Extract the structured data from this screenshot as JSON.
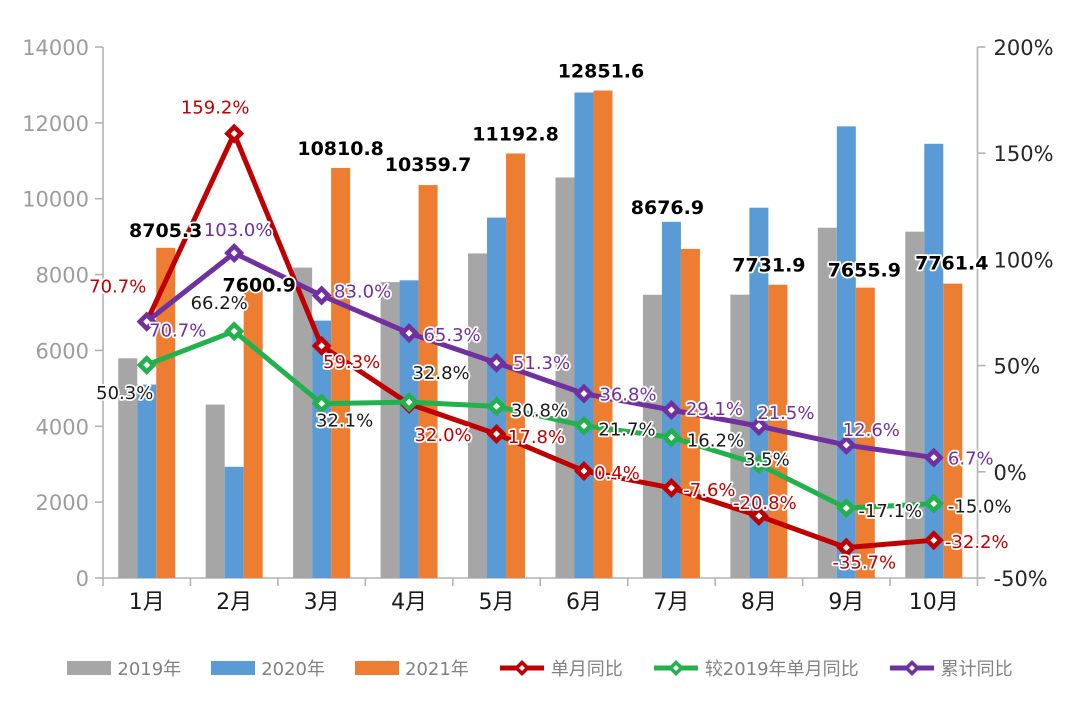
{
  "chart_data": {
    "type": "combo-bar-line",
    "title": "",
    "categories": [
      "1月",
      "2月",
      "3月",
      "4月",
      "5月",
      "6月",
      "7月",
      "8月",
      "9月",
      "10月"
    ],
    "bar_series": [
      {
        "name": "2019年",
        "color": "#a6a6a6",
        "values": [
          5792,
          4573,
          8184,
          7801,
          8557,
          10560,
          7467,
          7470,
          9235,
          9131
        ]
      },
      {
        "name": "2020年",
        "color": "#5b9bd5",
        "values": [
          5100,
          2932,
          6786,
          7848,
          9502,
          12800,
          9391,
          9763,
          11907,
          11448
        ]
      },
      {
        "name": "2021年",
        "color": "#ed7d31",
        "values": [
          8705.3,
          7600.9,
          10810.8,
          10359.7,
          11192.8,
          12851.6,
          8676.9,
          7731.9,
          7655.9,
          7761.4
        ],
        "value_labels": [
          "8705.3",
          "7600.9",
          "10810.8",
          "10359.7",
          "11192.8",
          "12851.6",
          "8676.9",
          "7731.9",
          "7655.9",
          "7761.4"
        ]
      }
    ],
    "line_series": [
      {
        "name": "单月同比",
        "color": "#c00000",
        "label_color": "#c00000",
        "values": [
          70.7,
          159.2,
          59.3,
          32.0,
          17.8,
          0.4,
          -7.6,
          -20.8,
          -35.7,
          -32.2
        ],
        "labels": [
          "70.7%",
          "159.2%",
          "59.3%",
          "32.0%",
          "17.8%",
          "0.4%",
          "-7.6%",
          "-20.8%",
          "-35.7%",
          "-32.2%"
        ]
      },
      {
        "name": "较2019年单月同比",
        "color": "#22b14c",
        "label_color": "#1a1a1a",
        "values": [
          50.3,
          66.2,
          32.1,
          32.8,
          30.8,
          21.7,
          16.2,
          3.5,
          -17.1,
          -15.0
        ],
        "labels": [
          "50.3%",
          "66.2%",
          "32.1%",
          "32.8%",
          "30.8%",
          "21.7%",
          "16.2%",
          "3.5%",
          "-17.1%",
          "-15.0%"
        ]
      },
      {
        "name": "累计同比",
        "color": "#7030a0",
        "label_color": "#7030a0",
        "values": [
          70.7,
          103.0,
          83.0,
          65.3,
          51.3,
          36.8,
          29.1,
          21.5,
          12.6,
          6.7
        ],
        "labels": [
          "70.7%",
          "103.0%",
          "83.0%",
          "65.3%",
          "51.3%",
          "36.8%",
          "29.1%",
          "21.5%",
          "12.6%",
          "6.7%"
        ]
      }
    ],
    "left_axis": {
      "min": 0,
      "max": 14000,
      "step": 2000,
      "tick_labels": [
        "0",
        "2000",
        "4000",
        "6000",
        "8000",
        "10000",
        "12000",
        "14000"
      ]
    },
    "right_axis": {
      "min": -50,
      "max": 200,
      "step": 50,
      "tick_labels": [
        "-50%",
        "0%",
        "50%",
        "100%",
        "150%",
        "200%"
      ]
    },
    "grid": false,
    "legend_position": "bottom",
    "background": "#ffffff"
  }
}
